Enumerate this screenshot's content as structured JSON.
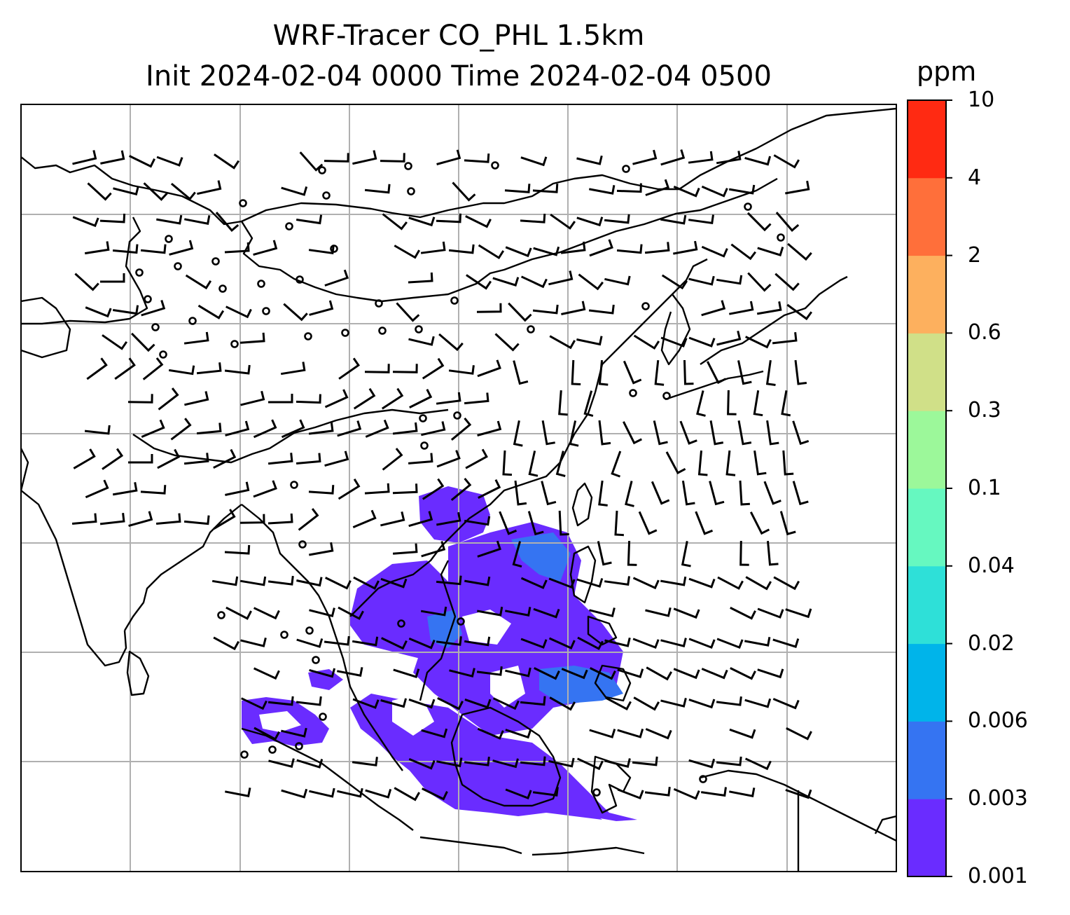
{
  "title": {
    "line1": "WRF-Tracer CO_PHL 1.5km",
    "line2": "Init 2024-02-04 0000 Time 2024-02-04 0500"
  },
  "colorbar": {
    "units": "ppm",
    "levels": [
      "0.001",
      "0.003",
      "0.006",
      "0.02",
      "0.04",
      "0.1",
      "0.3",
      "0.6",
      "2",
      "4",
      "10"
    ],
    "colors": [
      "#6a2cff",
      "#3574f2",
      "#00b4ea",
      "#2ee0d8",
      "#66f8c0",
      "#9cf89a",
      "#d0e088",
      "#fdb05e",
      "#ff6f3a",
      "#ff2a12"
    ]
  },
  "map": {
    "region": "Southeast Asia",
    "field": "CO_PHL tracer concentration",
    "overlay": "wind barbs",
    "gridlines": true,
    "coastline_color": "#000000",
    "grid_color": "#b0b0b0"
  }
}
